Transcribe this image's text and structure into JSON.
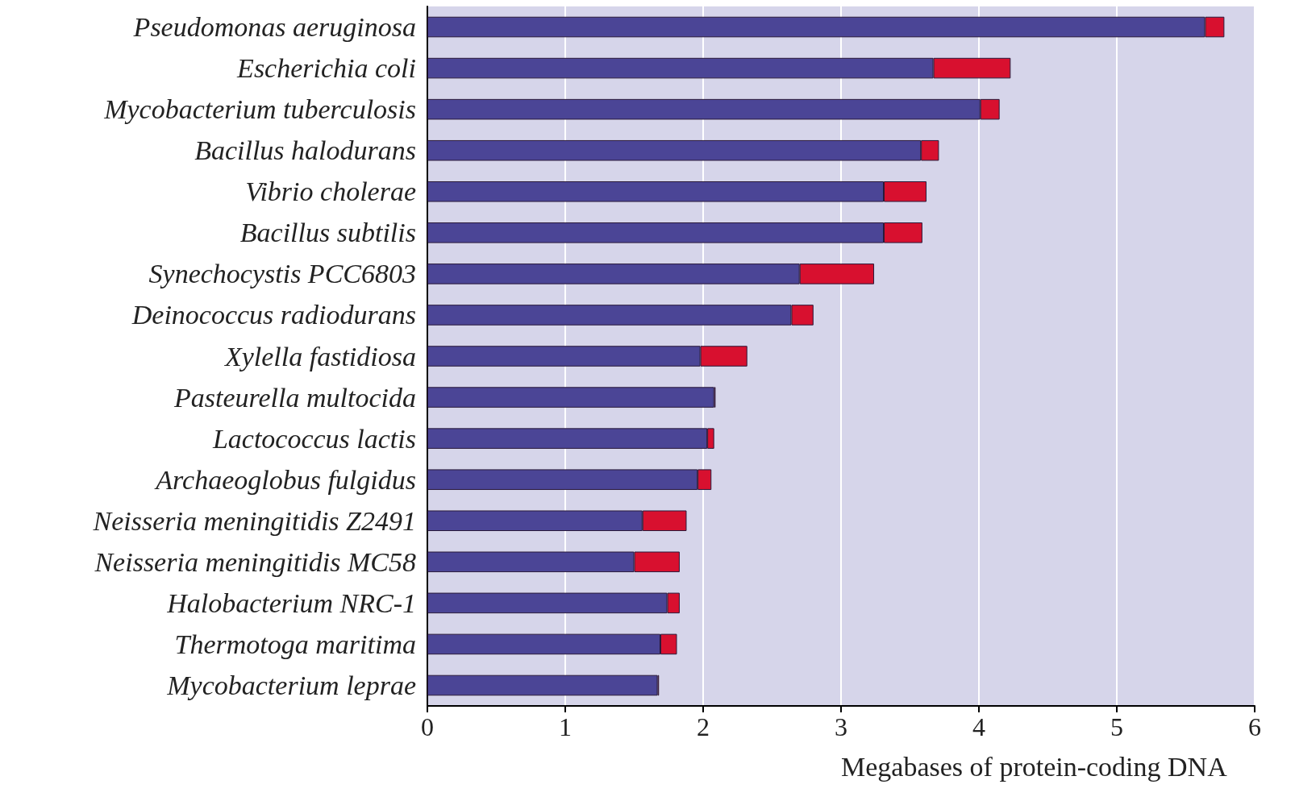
{
  "chart_data": {
    "type": "bar",
    "orientation": "horizontal",
    "stacked": true,
    "xlabel": "Megabases of protein-coding DNA",
    "categories": [
      "Pseudomonas aeruginosa",
      "Escherichia coli",
      "Mycobacterium tuberculosis",
      "Bacillus halodurans",
      "Vibrio cholerae",
      "Bacillus subtilis",
      "Synechocystis PCC6803",
      "Deinococcus radiodurans",
      "Xylella fastidiosa",
      "Pasteurella multocida",
      "Lactococcus lactis",
      "Archaeoglobus fulgidus",
      "Neisseria meningitidis Z2491",
      "Neisseria meningitidis MC58",
      "Halobacterium NRC-1",
      "Thermotoga maritima",
      "Mycobacterium leprae"
    ],
    "series": [
      {
        "color": "#4b4596",
        "values": [
          5.64,
          3.67,
          4.01,
          3.58,
          3.31,
          3.31,
          2.7,
          2.64,
          1.98,
          2.08,
          2.03,
          1.96,
          1.56,
          1.5,
          1.74,
          1.69,
          1.67
        ]
      },
      {
        "color": "#d8102f",
        "values": [
          0.14,
          0.56,
          0.14,
          0.13,
          0.31,
          0.28,
          0.54,
          0.16,
          0.34,
          0.01,
          0.05,
          0.1,
          0.32,
          0.33,
          0.09,
          0.12,
          0.01
        ]
      }
    ],
    "xlim": [
      0,
      6
    ],
    "xticks": [
      0,
      1,
      2,
      3,
      4,
      5,
      6
    ],
    "grid": "x"
  }
}
